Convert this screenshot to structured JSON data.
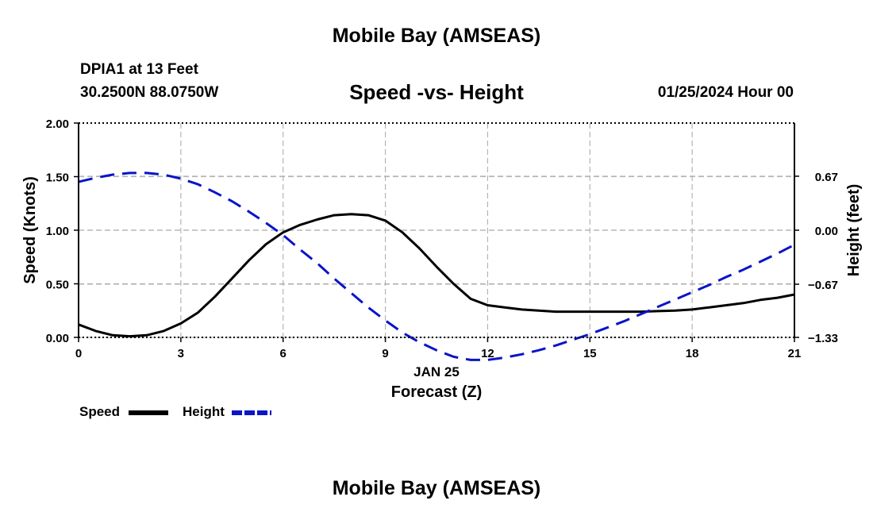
{
  "page": {
    "title": "Mobile Bay (AMSEAS)",
    "bottom_title": "Mobile Bay (AMSEAS)",
    "station_name": "DPIA1 at 13 Feet",
    "station_coords": "30.2500N  88.0750W",
    "subtitle": "Speed -vs- Height",
    "datetime": "01/25/2024 Hour 00"
  },
  "legend": {
    "speed_label": "Speed",
    "height_label": "Height"
  },
  "colors": {
    "speed": "#000000",
    "height": "#0a14c8",
    "grid": "#b4b4b4"
  },
  "chart_data": {
    "type": "line",
    "title": "Speed -vs- Height",
    "xlabel": "Forecast (Z)",
    "xlabel_date": "JAN 25",
    "ylabel": "Speed (Knots)",
    "ylabel_right": "Height (feet)",
    "xlim": [
      0,
      21
    ],
    "ylim": [
      0,
      2
    ],
    "ylim_right": [
      -1.33,
      1.33
    ],
    "xticks": [
      0,
      3,
      6,
      9,
      12,
      15,
      18,
      21
    ],
    "xtick_labels": [
      "0",
      "3",
      "6",
      "9",
      "12",
      "15",
      "18",
      "21"
    ],
    "yticks": [
      0,
      0.5,
      1.0,
      1.5,
      2.0
    ],
    "ytick_labels": [
      "0.00",
      "0.50",
      "1.00",
      "1.50",
      "2.00"
    ],
    "yticks_right": [
      0.67,
      0.0,
      -0.67,
      -1.33
    ],
    "ytick_labels_right": [
      "0.67",
      "0.00",
      "-0.67",
      "-1.33"
    ],
    "grid": true,
    "legend_position": "bottom-left",
    "x": [
      0,
      0.5,
      1,
      1.5,
      2,
      2.5,
      3,
      3.5,
      4,
      4.5,
      5,
      5.5,
      6,
      6.5,
      7,
      7.5,
      8,
      8.5,
      9,
      9.5,
      10,
      10.5,
      11,
      11.5,
      12,
      12.5,
      13,
      13.5,
      14,
      14.5,
      15,
      15.5,
      16,
      16.5,
      17,
      17.5,
      18,
      18.5,
      19,
      19.5,
      20,
      20.5,
      21
    ],
    "series": [
      {
        "name": "Speed",
        "axis": "left",
        "style": "solid",
        "values": [
          0.12,
          0.06,
          0.02,
          0.01,
          0.02,
          0.06,
          0.13,
          0.23,
          0.38,
          0.55,
          0.72,
          0.87,
          0.98,
          1.05,
          1.1,
          1.14,
          1.15,
          1.14,
          1.09,
          0.98,
          0.83,
          0.66,
          0.5,
          0.36,
          0.3,
          0.28,
          0.26,
          0.25,
          0.24,
          0.24,
          0.24,
          0.24,
          0.24,
          0.24,
          0.245,
          0.25,
          0.26,
          0.28,
          0.3,
          0.32,
          0.35,
          0.37,
          0.4
        ]
      },
      {
        "name": "Height",
        "axis": "right",
        "style": "dashed",
        "values": [
          0.6,
          0.65,
          0.69,
          0.71,
          0.71,
          0.69,
          0.64,
          0.57,
          0.47,
          0.36,
          0.23,
          0.09,
          -0.06,
          -0.24,
          -0.41,
          -0.6,
          -0.78,
          -0.96,
          -1.12,
          -1.27,
          -1.39,
          -1.49,
          -1.57,
          -1.61,
          -1.61,
          -1.58,
          -1.54,
          -1.49,
          -1.43,
          -1.36,
          -1.29,
          -1.21,
          -1.13,
          -1.04,
          -0.95,
          -0.86,
          -0.77,
          -0.68,
          -0.58,
          -0.49,
          -0.39,
          -0.29,
          -0.18
        ]
      }
    ]
  }
}
